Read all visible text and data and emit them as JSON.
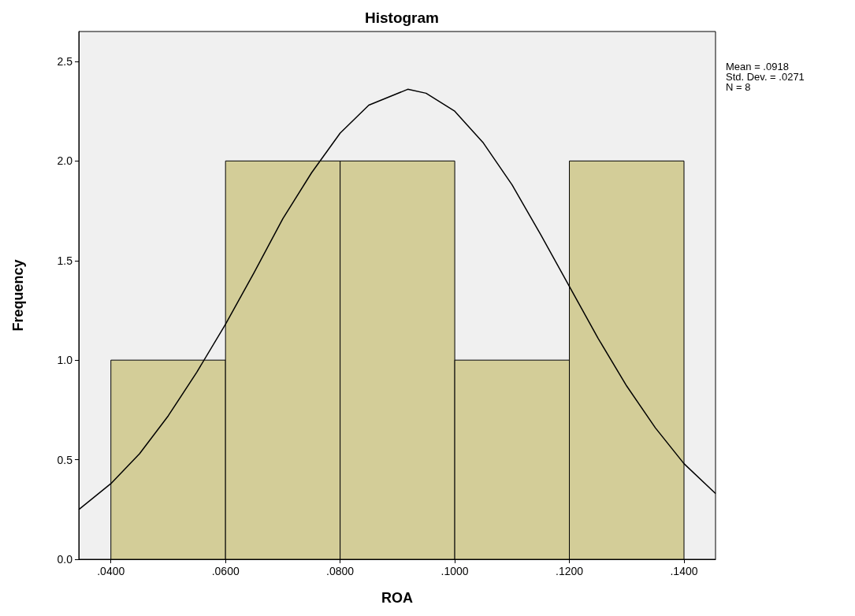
{
  "chart_data": {
    "type": "histogram",
    "title": "Histogram",
    "xlabel": "ROA",
    "ylabel": "Frequency",
    "annotations": [
      "Mean = .0918",
      "Std. Dev. = .0271",
      "N = 8"
    ],
    "xlim": [
      0.0344,
      0.1455
    ],
    "xticks": [
      {
        "value": 0.04,
        "label": ".0400"
      },
      {
        "value": 0.06,
        "label": ".0600"
      },
      {
        "value": 0.08,
        "label": ".0800"
      },
      {
        "value": 0.1,
        "label": ".1000"
      },
      {
        "value": 0.12,
        "label": ".1200"
      },
      {
        "value": 0.14,
        "label": ".1400"
      }
    ],
    "ylim": [
      0,
      2.65
    ],
    "yticks": [
      {
        "value": 0,
        "label": "0.0"
      },
      {
        "value": 0.5,
        "label": "0.5"
      },
      {
        "value": 1,
        "label": "1.0"
      },
      {
        "value": 1.5,
        "label": "1.5"
      },
      {
        "value": 2,
        "label": "2.0"
      },
      {
        "value": 2.5,
        "label": "2.5"
      }
    ],
    "grid": false,
    "series": [
      {
        "color": "#d3cd98",
        "bins": [
          0.04,
          0.06,
          0.08,
          0.1,
          0.12,
          0.14
        ],
        "values": [
          1,
          2,
          2,
          1,
          2
        ]
      },
      {
        "type": "line",
        "color": "#000000",
        "x": [
          0.0344,
          0.04,
          0.045,
          0.05,
          0.055,
          0.06,
          0.065,
          0.07,
          0.075,
          0.08,
          0.085,
          0.0918,
          0.095,
          0.1,
          0.105,
          0.11,
          0.115,
          0.12,
          0.125,
          0.13,
          0.135,
          0.14,
          0.1455
        ],
        "values": [
          0.25,
          0.38,
          0.53,
          0.72,
          0.94,
          1.18,
          1.44,
          1.71,
          1.94,
          2.14,
          2.28,
          2.36,
          2.34,
          2.25,
          2.09,
          1.88,
          1.63,
          1.37,
          1.11,
          0.87,
          0.66,
          0.48,
          0.33
        ]
      }
    ]
  }
}
